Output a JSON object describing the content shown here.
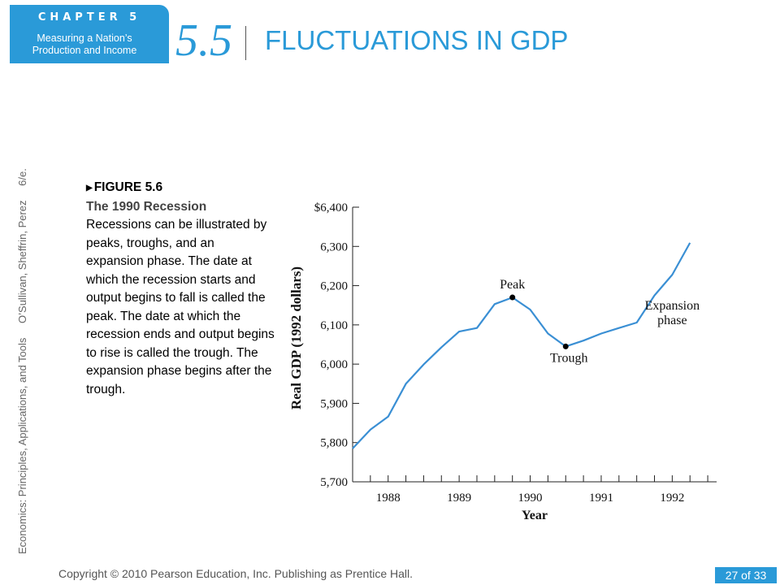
{
  "badge": {
    "chapter": "CHAPTER 5",
    "subtitle_1": "Measuring a Nation’s",
    "subtitle_2": "Production and Income"
  },
  "section": {
    "number": "5.5",
    "title": "FLUCTUATIONS IN GDP"
  },
  "sidebar": {
    "book": "Economics: Principles, Applications, and Tools",
    "authors": "O’Sullivan, Sheffrin, Perez",
    "edition": "6/e."
  },
  "figure": {
    "label": "FIGURE 5.6",
    "title": "The 1990 Recession",
    "description": "Recessions can be illustrated by peaks, troughs, and an expansion phase. The date at which the recession starts and output begins to fall is called the peak. The date at which the recession ends and output begins to rise is called the trough. The expansion phase begins after the trough."
  },
  "footer": {
    "copyright": "Copyright © 2010 Pearson Education, Inc. Publishing as Prentice Hall.",
    "page": "27 of 33"
  },
  "colors": {
    "accent": "#2a9ad8",
    "line": "#3a8fd4"
  },
  "chart_data": {
    "type": "line",
    "xlabel": "Year",
    "ylabel": "Real GDP (1992 dollars)",
    "ylim": [
      5700,
      6400
    ],
    "xlim": [
      1987.5,
      1992.625
    ],
    "y_ticks": [
      5700,
      5800,
      5900,
      6000,
      6100,
      6200,
      6300,
      6400
    ],
    "y_tick_labels": [
      "5,700",
      "5,800",
      "5,900",
      "6,000",
      "6,100",
      "6,200",
      "6,300",
      "$6,400"
    ],
    "x_ticks": [
      1988,
      1989,
      1990,
      1991,
      1992
    ],
    "x_tick_labels": [
      "1988",
      "1989",
      "1990",
      "1991",
      "1992"
    ],
    "series": [
      {
        "x": [
          1987.5,
          1987.75,
          1988.0,
          1988.25,
          1988.5,
          1988.75,
          1989.0,
          1989.25,
          1989.5,
          1989.75,
          1990.0,
          1990.25,
          1990.5,
          1990.75,
          1991.0,
          1991.25,
          1991.5,
          1991.75,
          1992.0,
          1992.25
        ],
        "values": [
          5785,
          5833,
          5866,
          5950,
          5999,
          6043,
          6083,
          6092,
          6153,
          6170,
          6139,
          6078,
          6045,
          6060,
          6078,
          6092,
          6106,
          6175,
          6228,
          6309
        ]
      }
    ],
    "annotations": [
      {
        "label": "Peak",
        "x": 1989.75,
        "y": 6170,
        "marker": true
      },
      {
        "label": "Trough",
        "x": 1990.5,
        "y": 6045,
        "marker": true
      },
      {
        "label": "Expansion phase",
        "x": 1992.0,
        "y": 6110,
        "marker": false
      }
    ]
  }
}
